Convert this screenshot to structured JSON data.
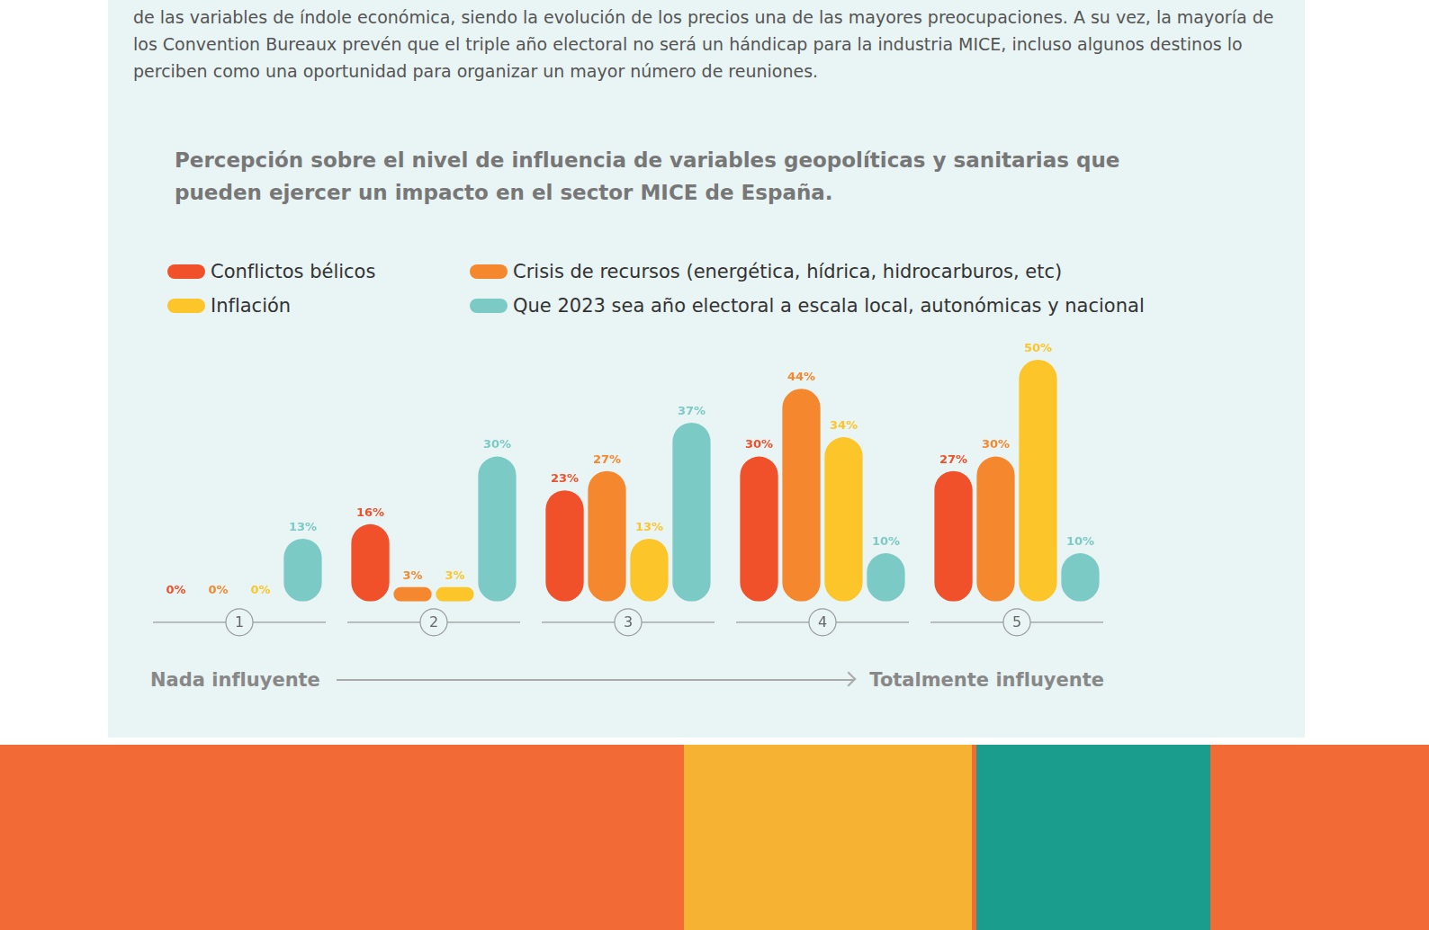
{
  "intro_text": [
    "de las variables de índole económica, siendo la evolución de los precios una de las mayores preocupaciones.",
    "A su vez, la mayoría de los Convention Bureaux prevén que el triple año electoral no será un hándicap para la industria MICE, incluso algunos destinos lo perciben como una oportunidad para organizar un mayor número de reuniones."
  ],
  "chart_data": {
    "type": "bar",
    "title": "Percepción sobre el nivel de influencia de variables geopolíticas y sanitarias que pueden ejercer un impacto en el sector MICE de España.",
    "categories": [
      "1",
      "2",
      "3",
      "4",
      "5"
    ],
    "series": [
      {
        "name": "Conflictos bélicos",
        "color": "#f0502a",
        "values": [
          0,
          16,
          23,
          30,
          27
        ],
        "value_labels": [
          "0%",
          "16%",
          "23%",
          "30%",
          "27%"
        ]
      },
      {
        "name": "Crisis de recursos (energética, hídrica, hidrocarburos, etc)",
        "color": "#f5882e",
        "values": [
          0,
          3,
          27,
          44,
          30
        ],
        "value_labels": [
          "0%",
          "3%",
          "27%",
          "44%",
          "30%"
        ]
      },
      {
        "name": "Inflación",
        "color": "#fcc62a",
        "values": [
          0,
          3,
          13,
          34,
          50
        ],
        "value_labels": [
          "0%",
          "3%",
          "13%",
          "34%",
          "50%"
        ]
      },
      {
        "name": "Que 2023 sea año electoral a escala local, autonómicas y nacional",
        "color": "#7ccac5",
        "values": [
          13,
          30,
          37,
          10,
          10
        ],
        "value_labels": [
          "13%",
          "30%",
          "37%",
          "10%",
          "10%"
        ]
      }
    ],
    "ylim": [
      0,
      50
    ],
    "tick_labels": "x",
    "grid": false,
    "legend": "top",
    "data_labels": true,
    "xlabel": {
      "low": "Nada influyente",
      "high": "Totalmente influyente"
    }
  }
}
